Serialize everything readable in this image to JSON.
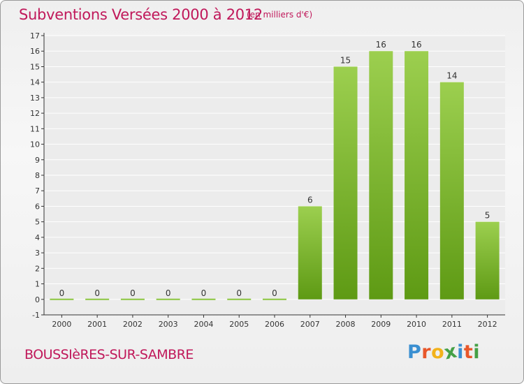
{
  "header": {
    "title": "Subventions Versées 2000 à 2012",
    "unit_note": "(en milliers d'€)"
  },
  "footer": {
    "commune": "BOUSSIèRES-SUR-SAMBRE",
    "logo_letters": [
      "P",
      "r",
      "o",
      "x",
      "i",
      "t",
      "i"
    ],
    "logo_colors": [
      "#3a8fd1",
      "#e8572a",
      "#f2b21b",
      "#45a046",
      "#3a8fd1",
      "#e8572a",
      "#45a046"
    ]
  },
  "colors": {
    "bar_top": "#9ccf4f",
    "bar_bottom": "#5e9a14",
    "zero_line": "#8cc63f",
    "axis": "#333333",
    "grid": "#ffffff"
  },
  "chart_data": {
    "type": "bar",
    "categories": [
      "2000",
      "2001",
      "2002",
      "2003",
      "2004",
      "2005",
      "2006",
      "2007",
      "2008",
      "2009",
      "2010",
      "2011",
      "2012"
    ],
    "values": [
      0,
      0,
      0,
      0,
      0,
      0,
      0,
      6,
      15,
      16,
      16,
      14,
      5
    ],
    "value_labels": [
      "0",
      "0",
      "0",
      "0",
      "0",
      "0",
      "0",
      "6",
      "15",
      "16",
      "16",
      "14",
      "5"
    ],
    "y_ticks": [
      "-1",
      "0",
      "1",
      "2",
      "3",
      "4",
      "5",
      "6",
      "7",
      "8",
      "9",
      "10",
      "11",
      "12",
      "13",
      "14",
      "15",
      "16",
      "17"
    ],
    "ylim": [
      -1,
      17
    ],
    "grid": "horizontal",
    "legend": "none"
  }
}
